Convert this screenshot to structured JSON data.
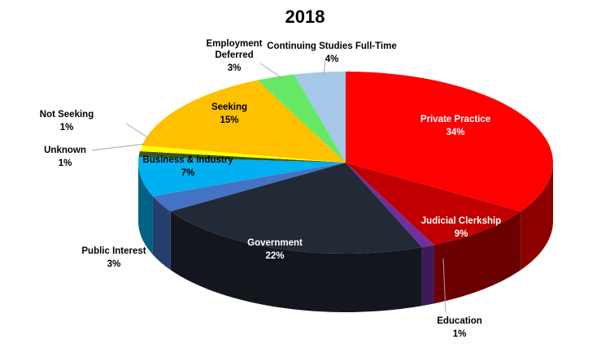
{
  "chart_data": {
    "type": "pie",
    "style": "3d",
    "title": "2018",
    "slices": [
      {
        "label": "Private Practice",
        "value": 34,
        "display": "34%",
        "color": "#ff0000"
      },
      {
        "label": "Judicial Clerkship",
        "value": 9,
        "display": "9%",
        "color": "#c00000"
      },
      {
        "label": "Education",
        "value": 1,
        "display": "1%",
        "color": "#7030a0"
      },
      {
        "label": "Government",
        "value": 22,
        "display": "22%",
        "color": "#222a35"
      },
      {
        "label": "Public Interest",
        "value": 3,
        "display": "3%",
        "color": "#4472c4"
      },
      {
        "label": "Business & Industry",
        "value": 7,
        "display": "7%",
        "color": "#00b0f0"
      },
      {
        "label": "Unknown",
        "value": 1,
        "display": "1%",
        "color": "#375623"
      },
      {
        "label": "Not Seeking",
        "value": 1,
        "display": "1%",
        "color": "#ffff00"
      },
      {
        "label": "Seeking",
        "value": 15,
        "display": "15%",
        "color": "#ffc000"
      },
      {
        "label": "Employment Deferred",
        "value": 3,
        "display": "3%",
        "color": "#66e866"
      },
      {
        "label": "Continuing Studies Full-Time",
        "value": 4,
        "display": "4%",
        "color": "#a5c8e8"
      }
    ]
  }
}
